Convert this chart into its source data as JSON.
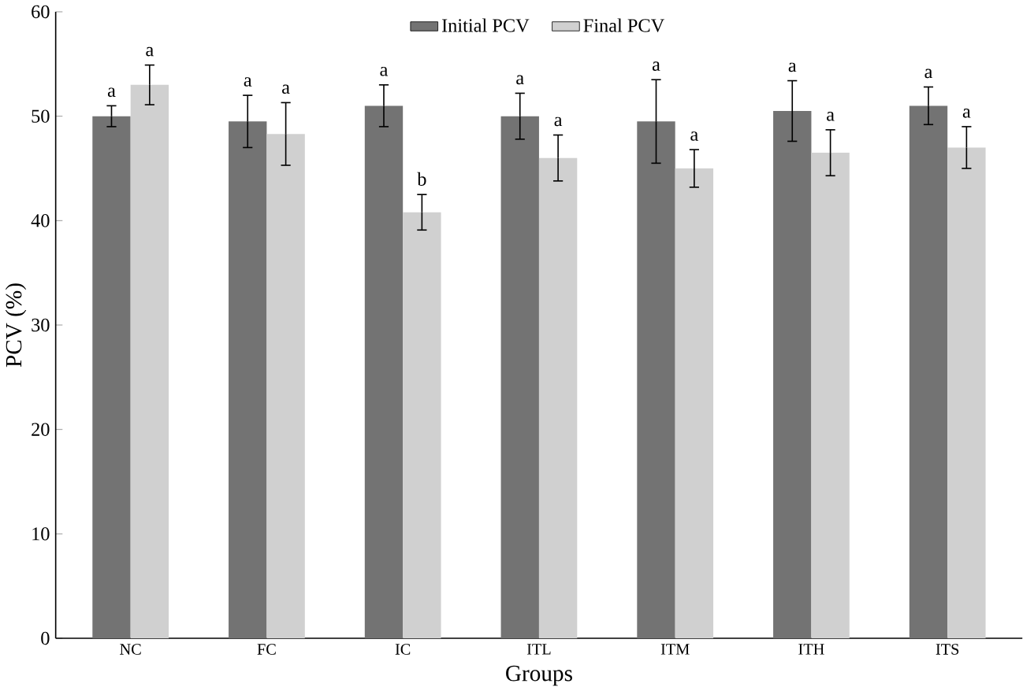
{
  "chart_data": {
    "type": "bar",
    "xlabel": "Groups",
    "ylabel": "PCV (%)",
    "categories": [
      "NC",
      "FC",
      "IC",
      "ITL",
      "ITM",
      "ITH",
      "ITS"
    ],
    "series": [
      {
        "name": "Initial PCV",
        "color": "#737373",
        "values": [
          50,
          49.5,
          51,
          50,
          49.5,
          50.5,
          51
        ],
        "errors": [
          1,
          2.5,
          2,
          2.2,
          4,
          2.9,
          1.8
        ]
      },
      {
        "name": "Final PCV",
        "color": "#d0d0d0",
        "values": [
          53,
          48.3,
          40.8,
          46,
          45,
          46.5,
          47
        ],
        "errors": [
          1.9,
          3,
          1.7,
          2.2,
          1.8,
          2.2,
          2
        ]
      }
    ],
    "ylim": [
      0,
      60
    ],
    "yticks": [
      0,
      10,
      20,
      30,
      40,
      50,
      60
    ],
    "legend": "top",
    "annotations": [
      "a",
      "a",
      "a",
      "a",
      "a",
      "b",
      "a",
      "a",
      "a",
      "a",
      "a",
      "a",
      "a",
      "a"
    ]
  }
}
